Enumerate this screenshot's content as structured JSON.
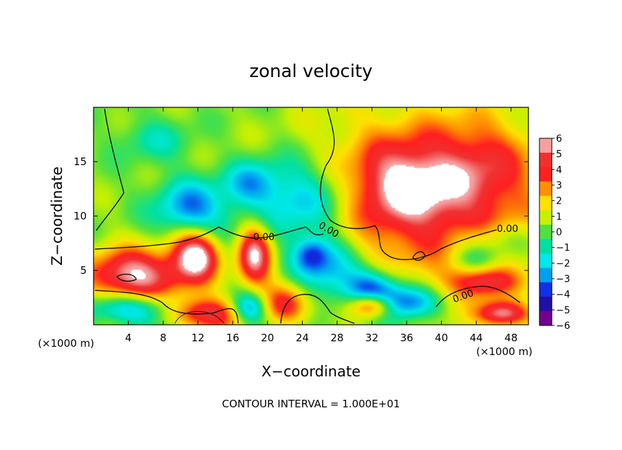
{
  "chart_data": {
    "type": "heatmap",
    "title": "zonal velocity",
    "xlabel": "X−coordinate",
    "ylabel": "Z−coordinate",
    "x_unit": "(×1000 m)",
    "y_unit": "(×1000 m)",
    "xlim": [
      0,
      50
    ],
    "ylim": [
      0,
      20
    ],
    "x_ticks": [
      4,
      8,
      12,
      16,
      20,
      24,
      28,
      32,
      36,
      40,
      44,
      48
    ],
    "y_ticks": [
      5,
      10,
      15
    ],
    "colorbar": {
      "min": -6,
      "max": 6,
      "ticks": [
        "6",
        "5",
        "4",
        "3",
        "2",
        "1",
        "0",
        "−1",
        "−2",
        "−3",
        "−4",
        "−5",
        "−6"
      ],
      "colors": [
        "#f6a0a0",
        "#f03030",
        "#ff2020",
        "#ff9000",
        "#ffe000",
        "#c8f000",
        "#50e040",
        "#00e0a0",
        "#00e8e8",
        "#00a0f0",
        "#1030e8",
        "#2010a8",
        "#700090"
      ]
    },
    "contour_labels": [
      "0.00",
      "0.00",
      "0.00",
      "0.00"
    ],
    "footer": "CONTOUR INTERVAL = 1.000E+01",
    "blobs": [
      {
        "x": 38,
        "z": 12,
        "rx": 13,
        "rz": 7,
        "v": 5
      },
      {
        "x": 36,
        "z": 13,
        "rx": 5,
        "rz": 3,
        "v": 2.5
      },
      {
        "x": 45,
        "z": 15,
        "rx": 5,
        "rz": 4,
        "v": 1.5
      },
      {
        "x": 24,
        "z": 11.5,
        "rx": 6,
        "rz": 4,
        "v": -4
      },
      {
        "x": 18,
        "z": 13,
        "rx": 3,
        "rz": 2,
        "v": -2.5
      },
      {
        "x": 11,
        "z": 11,
        "rx": 4,
        "rz": 2.5,
        "v": -3
      },
      {
        "x": 7,
        "z": 17,
        "rx": 4,
        "rz": 2,
        "v": -1.5
      },
      {
        "x": 12,
        "z": 6.5,
        "rx": 3,
        "rz": 2.5,
        "v": 10
      },
      {
        "x": 12.5,
        "z": 7,
        "rx": 4,
        "rz": 3.5,
        "v": -4
      },
      {
        "x": 18.5,
        "z": 6.5,
        "rx": 2,
        "rz": 2.8,
        "v": 6
      },
      {
        "x": 5,
        "z": 4.5,
        "rx": 6,
        "rz": 2.5,
        "v": 6
      },
      {
        "x": 4,
        "z": 1.5,
        "rx": 5,
        "rz": 1.5,
        "v": -4
      },
      {
        "x": 12.5,
        "z": 1,
        "rx": 4,
        "rz": 1.5,
        "v": 5
      },
      {
        "x": 18,
        "z": 1.5,
        "rx": 2,
        "rz": 1.5,
        "v": -4
      },
      {
        "x": 22,
        "z": 2,
        "rx": 3,
        "rz": 2,
        "v": 4
      },
      {
        "x": 27,
        "z": 5,
        "rx": 4,
        "rz": 3,
        "v": -3.5
      },
      {
        "x": 32,
        "z": 3,
        "rx": 3,
        "rz": 2,
        "v": -5
      },
      {
        "x": 32,
        "z": 1.8,
        "rx": 2.5,
        "rz": 1.2,
        "v": 7
      },
      {
        "x": 36,
        "z": 2,
        "rx": 4,
        "rz": 1.5,
        "v": -4
      },
      {
        "x": 45,
        "z": 4,
        "rx": 4,
        "rz": 1.5,
        "v": 4
      },
      {
        "x": 44,
        "z": 6,
        "rx": 3,
        "rz": 1.5,
        "v": -2.5
      },
      {
        "x": 47,
        "z": 1,
        "rx": 3,
        "rz": 1.2,
        "v": 6
      },
      {
        "x": 46,
        "z": 8,
        "rx": 5,
        "rz": 1.5,
        "v": -1.5
      },
      {
        "x": 25,
        "z": 6.5,
        "rx": 2,
        "rz": 1.5,
        "v": -3
      }
    ]
  }
}
